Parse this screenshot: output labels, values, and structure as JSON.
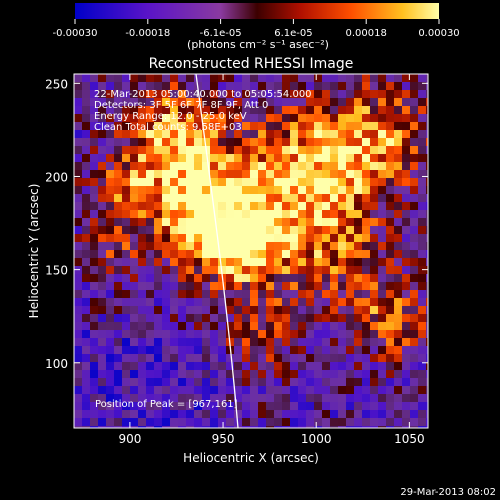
{
  "colorbar": {
    "ticks": [
      "-0.00030",
      "-0.00018",
      "-6.1e-05",
      "6.1e-05",
      "0.00018",
      "0.00030"
    ],
    "units": "(photons cm⁻² s⁻¹ asec⁻²)",
    "range": [
      -0.0003,
      0.0003
    ]
  },
  "plot": {
    "title": "Reconstructed RHESSI Image",
    "xlabel": "Heliocentric X (arcsec)",
    "ylabel": "Heliocentric Y (arcsec)",
    "xlim": [
      870,
      1060
    ],
    "ylim": [
      65,
      255
    ],
    "xticks": [
      "900",
      "950",
      "1000",
      "1050"
    ],
    "yticks": [
      "100",
      "150",
      "200",
      "250"
    ],
    "annotations": [
      "22-Mar-2013 05:00:40.000 to 05:05:54.000",
      "Detectors: 3F 5F 6F 7F 8F 9F, Att 0",
      "Energy Range: 12.0 - 25.0 keV",
      "Clean     Total counts: 9.58E+03"
    ],
    "peak_text": "Position of Peak = [967,161]"
  },
  "footer": {
    "timestamp": "29-Mar-2013 08:02"
  },
  "colors": {
    "background": "#000000",
    "text": "#ffffff",
    "limb": "#ffffff"
  }
}
